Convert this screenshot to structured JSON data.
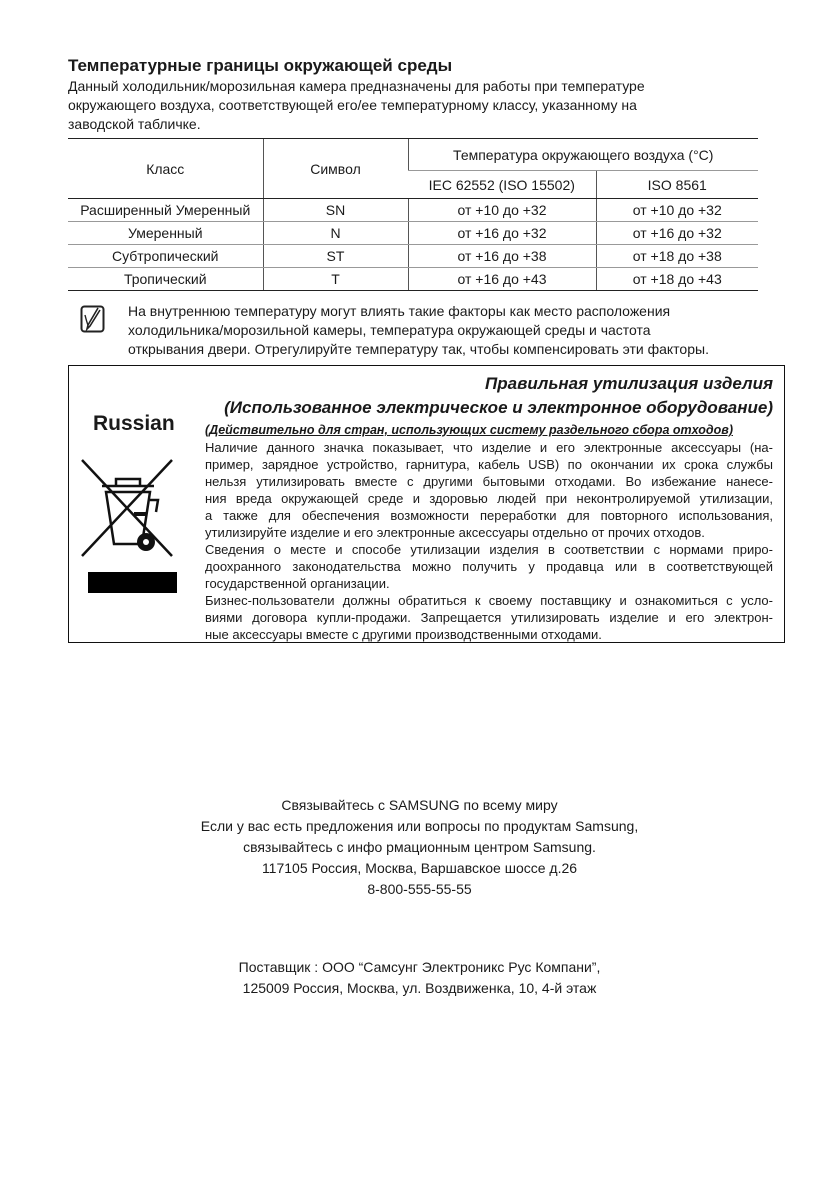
{
  "heading": "Температурные границы окружающей среды",
  "intro": [
    "Данный холодильник/морозильная камера предназначены для работы при температуре",
    "окружающего воздуха, соответствующей его/ее температурному классу, указанному на",
    "заводской табличке."
  ],
  "table": {
    "headers": {
      "class": "Класс",
      "symbol": "Символ",
      "temp": "Температура окружающего воздуха (°C)",
      "std1": "IEC 62552 (ISO 15502)",
      "std2": "ISO 8561"
    },
    "rows": [
      {
        "class": "Расширенный Умеренный",
        "symbol": "SN",
        "std1": "от +10 до +32",
        "std2": "от +10 до +32"
      },
      {
        "class": "Умеренный",
        "symbol": "N",
        "std1": "от +16 до +32",
        "std2": "от +16 до +32"
      },
      {
        "class": "Субтропический",
        "symbol": "ST",
        "std1": "от +16 до +38",
        "std2": "от +18 до +38"
      },
      {
        "class": "Тропический",
        "symbol": "T",
        "std1": "от +16 до +43",
        "std2": "от +18 до +43"
      }
    ]
  },
  "note": {
    "icon": "note-pencil-icon",
    "lines": [
      "На внутреннюю температуру могут влиять такие факторы как место расположения",
      "холодильника/морозильной камеры, температура окружающей среды и частота",
      "открывания двери. Отрегулируйте температуру так, чтобы компенсировать эти факторы."
    ]
  },
  "disposal": {
    "language": "Russian",
    "icon": "crossed-out-bin-icon",
    "title1": "Правильная утилизация изделия",
    "title2": "(Использованное электрическое и электронное оборудование)",
    "subtitle": "(Действительно для стран, использующих систему раздельного сбора отходов)",
    "p1": [
      "Наличие данного значка показывает, что изделие и его электронные аксессуары (на-",
      "пример, зарядное устройство, гарнитура, кабель USB) по окончании их срока службы",
      "нельзя утилизировать вместе с другими бытовыми отходами. Во избежание нанесе-",
      "ния вреда окружающей среде и здоровью людей при неконтролируемой утилизации,",
      "а также для обеспечения возможности переработки для повторного использования,",
      "утилизируйте изделие и его электронные аксессуары отдельно от прочих отходов."
    ],
    "p2": [
      "Сведения о месте и способе утилизации изделия в соответствии с нормами приро-",
      "доохранного законодательства можно получить у продавца или в соответствующей",
      "государственной организации."
    ],
    "p3": [
      "Бизнес-пользователи должны обратиться к своему поставщику и ознакомиться с усло-",
      "виями договора купли-продажи. Запрещается утилизировать изделие и его электрон-",
      "ные аксессуары вместе с другими производственными отходами."
    ]
  },
  "contact": [
    "Связывайтесь с SAMSUNG по всему миру",
    "Если у вас есть предложения или вопросы по продуктам Samsung,",
    "связывайтесь с инфо рмационным центром Samsung.",
    "117105 Россия, Москва, Варшавское шоссе д.26",
    "8-800-555-55-55"
  ],
  "supplier": [
    "Поставщик : ООО “Самсунг Электроникс Рус Компани”,",
    "125009 Россия, Москва, ул. Воздвиженка, 10, 4-й этаж"
  ]
}
